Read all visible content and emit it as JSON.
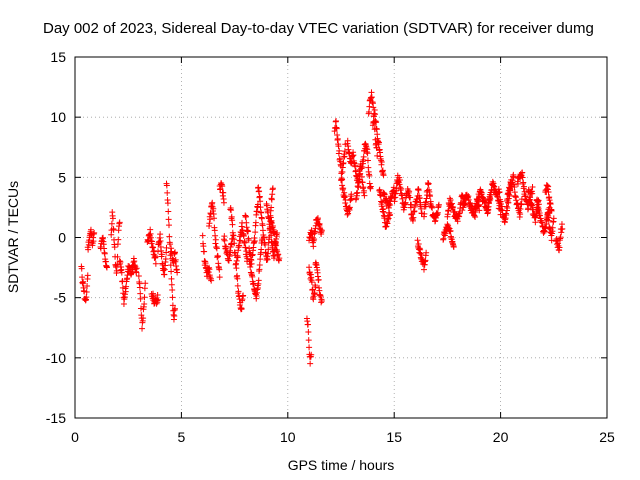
{
  "chart_data": {
    "type": "scatter",
    "title": "Day 002 of 2023, Sidereal Day-to-day VTEC variation (SDTVAR) for receiver dumg",
    "xlabel": "GPS time / hours",
    "ylabel": "SDTVAR / TECUs",
    "xlim": [
      0,
      25
    ],
    "ylim": [
      -15,
      15
    ],
    "xticks": [
      0,
      5,
      10,
      15,
      20,
      25
    ],
    "yticks": [
      -15,
      -10,
      -5,
      0,
      5,
      10,
      15
    ],
    "grid": true,
    "marker": "+",
    "colors": {
      "series": "#ff0000",
      "axes": "#000000",
      "grid": "#a0a0a0",
      "background": "#ffffff"
    },
    "series": [
      {
        "name": "SDTVAR",
        "segments": [
          {
            "x0": 0.3,
            "x1": 0.6,
            "y": [
              -2.5,
              -3.5,
              -4,
              -5,
              -5.5,
              -4.5,
              -3
            ]
          },
          {
            "x0": 0.6,
            "x1": 0.9,
            "y": [
              -1,
              0,
              0.5,
              -0.5,
              0.3
            ]
          },
          {
            "x0": 1.2,
            "x1": 1.5,
            "y": [
              -1,
              0,
              -1.5,
              -2.5
            ]
          },
          {
            "x0": 1.7,
            "x1": 2.1,
            "y": [
              0,
              2,
              1,
              -0.5,
              -2,
              -3,
              -1.5,
              0.5,
              1.5
            ]
          },
          {
            "x0": 2.1,
            "x1": 2.5,
            "y": [
              -2,
              -3,
              -5.5,
              -4,
              -2.5
            ]
          },
          {
            "x0": 2.5,
            "x1": 2.9,
            "y": [
              -2.5,
              -3,
              -2,
              -2.8
            ]
          },
          {
            "x0": 3.0,
            "x1": 3.3,
            "y": [
              -3,
              -5,
              -7.5,
              -6,
              -4
            ]
          },
          {
            "x0": 3.4,
            "x1": 3.8,
            "y": [
              -0.5,
              0.5,
              -1,
              -2
            ]
          },
          {
            "x0": 3.6,
            "x1": 3.9,
            "y": [
              -4.5,
              -5.5,
              -5
            ]
          },
          {
            "x0": 3.9,
            "x1": 4.3,
            "y": [
              -1,
              0,
              -2,
              -3,
              -1
            ]
          },
          {
            "x0": 4.3,
            "x1": 4.7,
            "y": [
              4.5,
              3,
              1,
              -1,
              -3,
              -5,
              -7,
              -6
            ]
          },
          {
            "x0": 4.5,
            "x1": 4.8,
            "y": [
              -1,
              -2,
              -1.5,
              -3
            ]
          },
          {
            "x0": 6.0,
            "x1": 6.4,
            "y": [
              0,
              -2,
              -3,
              -2.5,
              -3.5
            ]
          },
          {
            "x0": 6.3,
            "x1": 6.8,
            "y": [
              1,
              2,
              3,
              2,
              0,
              -1,
              -2,
              -3
            ]
          },
          {
            "x0": 6.8,
            "x1": 7.0,
            "y": [
              4,
              4.5,
              3
            ]
          },
          {
            "x0": 7.0,
            "x1": 7.4,
            "y": [
              0,
              -1,
              -2,
              -1,
              0
            ]
          },
          {
            "x0": 7.3,
            "x1": 7.9,
            "y": [
              2.5,
              1,
              -1,
              -3,
              -5,
              -6,
              -5
            ]
          },
          {
            "x0": 7.6,
            "x1": 8.1,
            "y": [
              -2,
              -1,
              0,
              1,
              0,
              -1,
              -2
            ]
          },
          {
            "x0": 8.0,
            "x1": 8.6,
            "y": [
              2,
              1,
              0,
              -1.5,
              -2,
              -1,
              0,
              2,
              3
            ]
          },
          {
            "x0": 8.2,
            "x1": 8.8,
            "y": [
              -2,
              -3,
              -4,
              -5,
              -4,
              -2,
              0
            ]
          },
          {
            "x0": 8.6,
            "x1": 9.3,
            "y": [
              4,
              3.5,
              2,
              1,
              0,
              -1,
              -2,
              -1,
              1,
              3,
              4
            ]
          },
          {
            "x0": 9.0,
            "x1": 9.5,
            "y": [
              3,
              2,
              1,
              0,
              -1,
              -1.5,
              -0.5,
              0.5
            ]
          },
          {
            "x0": 9.2,
            "x1": 9.6,
            "y": [
              1.5,
              0.5,
              -1,
              -2
            ]
          },
          {
            "x0": 10.9,
            "x1": 11.1,
            "y": [
              -6.5,
              -7.5,
              -9,
              -10.5,
              -9.5
            ]
          },
          {
            "x0": 11.0,
            "x1": 11.3,
            "y": [
              -2.5,
              -3.5,
              -5,
              -4
            ]
          },
          {
            "x0": 11.0,
            "x1": 11.6,
            "y": [
              0,
              0.5,
              -0.5,
              1,
              1.5,
              1,
              0.3
            ]
          },
          {
            "x0": 11.3,
            "x1": 11.6,
            "y": [
              -2,
              -3,
              -4.5,
              -5.5
            ]
          },
          {
            "x0": 12.2,
            "x1": 12.7,
            "y": [
              9,
              9.5,
              8,
              7,
              6,
              5,
              6.5,
              7.5
            ]
          },
          {
            "x0": 12.5,
            "x1": 13.0,
            "y": [
              5,
              4,
              3,
              2,
              2.5,
              3.5
            ]
          },
          {
            "x0": 12.8,
            "x1": 13.4,
            "y": [
              8,
              7,
              6,
              7,
              6,
              5,
              4.5,
              6
            ]
          },
          {
            "x0": 13.2,
            "x1": 13.6,
            "y": [
              3,
              4,
              5,
              6,
              4.5,
              3.5
            ]
          },
          {
            "x0": 13.5,
            "x1": 13.9,
            "y": [
              6,
              7,
              8,
              7,
              5,
              4
            ]
          },
          {
            "x0": 13.8,
            "x1": 14.2,
            "y": [
              10,
              11.5,
              12,
              11,
              9.5,
              8,
              7
            ]
          },
          {
            "x0": 14.0,
            "x1": 14.5,
            "y": [
              9.5,
              10.5,
              9,
              8,
              7,
              6,
              5
            ]
          },
          {
            "x0": 14.3,
            "x1": 14.8,
            "y": [
              4,
              3,
              2,
              1,
              1.5,
              2
            ]
          },
          {
            "x0": 14.5,
            "x1": 15.0,
            "y": [
              3.5,
              3,
              2.5,
              3.5,
              4
            ]
          },
          {
            "x0": 15.0,
            "x1": 15.8,
            "y": [
              3,
              4,
              5,
              4.5,
              3.5,
              2.5,
              3,
              4,
              3.5,
              2.5
            ]
          },
          {
            "x0": 15.8,
            "x1": 16.3,
            "y": [
              2,
              1.5,
              2.5,
              3,
              4,
              3,
              2
            ]
          },
          {
            "x0": 16.1,
            "x1": 16.5,
            "y": [
              -0.5,
              -1,
              -1.5,
              -2,
              -2.5,
              -1.5
            ]
          },
          {
            "x0": 16.4,
            "x1": 17.1,
            "y": [
              2,
              3,
              4.5,
              3,
              2,
              1.5,
              2,
              2.5
            ]
          },
          {
            "x0": 17.3,
            "x1": 17.8,
            "y": [
              0,
              0.5,
              1,
              0.5,
              0,
              -0.5
            ]
          },
          {
            "x0": 17.5,
            "x1": 18.3,
            "y": [
              2,
              3,
              2.5,
              2,
              1.5,
              2,
              3.5,
              2.5
            ]
          },
          {
            "x0": 18.2,
            "x1": 19.0,
            "y": [
              2.5,
              3,
              3.5,
              2.8,
              2.2,
              2,
              3,
              2.5
            ]
          },
          {
            "x0": 18.8,
            "x1": 19.5,
            "y": [
              2,
              3,
              4,
              3.2,
              2.8,
              2.2,
              3.5
            ]
          },
          {
            "x0": 19.4,
            "x1": 20.0,
            "y": [
              2.5,
              3.5,
              4.5,
              4,
              3,
              2
            ]
          },
          {
            "x0": 19.9,
            "x1": 20.5,
            "y": [
              4,
              3,
              2,
              1.5,
              2.5,
              3.5,
              4.5
            ]
          },
          {
            "x0": 20.3,
            "x1": 21.0,
            "y": [
              3,
              4,
              4.5,
              5,
              3.5,
              2.5,
              2,
              3
            ]
          },
          {
            "x0": 20.8,
            "x1": 21.5,
            "y": [
              4.5,
              5,
              5.5,
              4,
              3,
              2.5,
              3.5,
              4
            ]
          },
          {
            "x0": 21.3,
            "x1": 21.8,
            "y": [
              4,
              3,
              2.5,
              2,
              1.5,
              2.5,
              3
            ]
          },
          {
            "x0": 21.7,
            "x1": 22.3,
            "y": [
              3,
              2,
              1,
              0.5,
              1.5,
              2.5
            ]
          },
          {
            "x0": 22.1,
            "x1": 22.4,
            "y": [
              3.5,
              4.5,
              3,
              2
            ]
          },
          {
            "x0": 22.2,
            "x1": 22.5,
            "y": [
              2,
              1,
              0,
              1.5
            ]
          },
          {
            "x0": 22.6,
            "x1": 22.9,
            "y": [
              0,
              -0.5,
              -1,
              0.5,
              1
            ]
          }
        ]
      }
    ]
  }
}
